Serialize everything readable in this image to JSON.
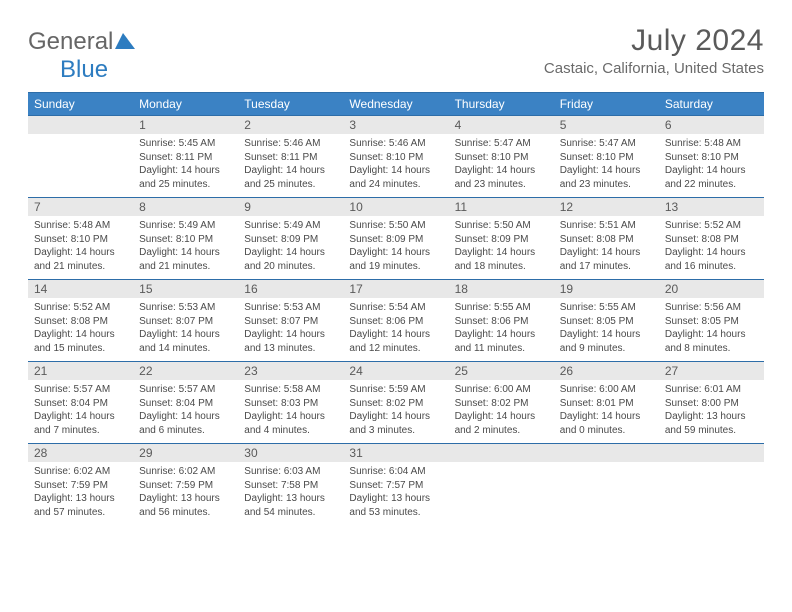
{
  "brand": {
    "part1": "General",
    "part2": "Blue"
  },
  "title": "July 2024",
  "location": "Castaic, California, United States",
  "dayNames": [
    "Sunday",
    "Monday",
    "Tuesday",
    "Wednesday",
    "Thursday",
    "Friday",
    "Saturday"
  ],
  "colors": {
    "headerBg": "#3b82c4",
    "headerBorder": "#2d6da8",
    "dayNumBg": "#e8e8e8",
    "textMuted": "#5a5a5a",
    "brandBlue": "#2d7cc0"
  },
  "weeks": [
    [
      {
        "num": "",
        "lines": []
      },
      {
        "num": "1",
        "lines": [
          "Sunrise: 5:45 AM",
          "Sunset: 8:11 PM",
          "Daylight: 14 hours",
          "and 25 minutes."
        ]
      },
      {
        "num": "2",
        "lines": [
          "Sunrise: 5:46 AM",
          "Sunset: 8:11 PM",
          "Daylight: 14 hours",
          "and 25 minutes."
        ]
      },
      {
        "num": "3",
        "lines": [
          "Sunrise: 5:46 AM",
          "Sunset: 8:10 PM",
          "Daylight: 14 hours",
          "and 24 minutes."
        ]
      },
      {
        "num": "4",
        "lines": [
          "Sunrise: 5:47 AM",
          "Sunset: 8:10 PM",
          "Daylight: 14 hours",
          "and 23 minutes."
        ]
      },
      {
        "num": "5",
        "lines": [
          "Sunrise: 5:47 AM",
          "Sunset: 8:10 PM",
          "Daylight: 14 hours",
          "and 23 minutes."
        ]
      },
      {
        "num": "6",
        "lines": [
          "Sunrise: 5:48 AM",
          "Sunset: 8:10 PM",
          "Daylight: 14 hours",
          "and 22 minutes."
        ]
      }
    ],
    [
      {
        "num": "7",
        "lines": [
          "Sunrise: 5:48 AM",
          "Sunset: 8:10 PM",
          "Daylight: 14 hours",
          "and 21 minutes."
        ]
      },
      {
        "num": "8",
        "lines": [
          "Sunrise: 5:49 AM",
          "Sunset: 8:10 PM",
          "Daylight: 14 hours",
          "and 21 minutes."
        ]
      },
      {
        "num": "9",
        "lines": [
          "Sunrise: 5:49 AM",
          "Sunset: 8:09 PM",
          "Daylight: 14 hours",
          "and 20 minutes."
        ]
      },
      {
        "num": "10",
        "lines": [
          "Sunrise: 5:50 AM",
          "Sunset: 8:09 PM",
          "Daylight: 14 hours",
          "and 19 minutes."
        ]
      },
      {
        "num": "11",
        "lines": [
          "Sunrise: 5:50 AM",
          "Sunset: 8:09 PM",
          "Daylight: 14 hours",
          "and 18 minutes."
        ]
      },
      {
        "num": "12",
        "lines": [
          "Sunrise: 5:51 AM",
          "Sunset: 8:08 PM",
          "Daylight: 14 hours",
          "and 17 minutes."
        ]
      },
      {
        "num": "13",
        "lines": [
          "Sunrise: 5:52 AM",
          "Sunset: 8:08 PM",
          "Daylight: 14 hours",
          "and 16 minutes."
        ]
      }
    ],
    [
      {
        "num": "14",
        "lines": [
          "Sunrise: 5:52 AM",
          "Sunset: 8:08 PM",
          "Daylight: 14 hours",
          "and 15 minutes."
        ]
      },
      {
        "num": "15",
        "lines": [
          "Sunrise: 5:53 AM",
          "Sunset: 8:07 PM",
          "Daylight: 14 hours",
          "and 14 minutes."
        ]
      },
      {
        "num": "16",
        "lines": [
          "Sunrise: 5:53 AM",
          "Sunset: 8:07 PM",
          "Daylight: 14 hours",
          "and 13 minutes."
        ]
      },
      {
        "num": "17",
        "lines": [
          "Sunrise: 5:54 AM",
          "Sunset: 8:06 PM",
          "Daylight: 14 hours",
          "and 12 minutes."
        ]
      },
      {
        "num": "18",
        "lines": [
          "Sunrise: 5:55 AM",
          "Sunset: 8:06 PM",
          "Daylight: 14 hours",
          "and 11 minutes."
        ]
      },
      {
        "num": "19",
        "lines": [
          "Sunrise: 5:55 AM",
          "Sunset: 8:05 PM",
          "Daylight: 14 hours",
          "and 9 minutes."
        ]
      },
      {
        "num": "20",
        "lines": [
          "Sunrise: 5:56 AM",
          "Sunset: 8:05 PM",
          "Daylight: 14 hours",
          "and 8 minutes."
        ]
      }
    ],
    [
      {
        "num": "21",
        "lines": [
          "Sunrise: 5:57 AM",
          "Sunset: 8:04 PM",
          "Daylight: 14 hours",
          "and 7 minutes."
        ]
      },
      {
        "num": "22",
        "lines": [
          "Sunrise: 5:57 AM",
          "Sunset: 8:04 PM",
          "Daylight: 14 hours",
          "and 6 minutes."
        ]
      },
      {
        "num": "23",
        "lines": [
          "Sunrise: 5:58 AM",
          "Sunset: 8:03 PM",
          "Daylight: 14 hours",
          "and 4 minutes."
        ]
      },
      {
        "num": "24",
        "lines": [
          "Sunrise: 5:59 AM",
          "Sunset: 8:02 PM",
          "Daylight: 14 hours",
          "and 3 minutes."
        ]
      },
      {
        "num": "25",
        "lines": [
          "Sunrise: 6:00 AM",
          "Sunset: 8:02 PM",
          "Daylight: 14 hours",
          "and 2 minutes."
        ]
      },
      {
        "num": "26",
        "lines": [
          "Sunrise: 6:00 AM",
          "Sunset: 8:01 PM",
          "Daylight: 14 hours",
          "and 0 minutes."
        ]
      },
      {
        "num": "27",
        "lines": [
          "Sunrise: 6:01 AM",
          "Sunset: 8:00 PM",
          "Daylight: 13 hours",
          "and 59 minutes."
        ]
      }
    ],
    [
      {
        "num": "28",
        "lines": [
          "Sunrise: 6:02 AM",
          "Sunset: 7:59 PM",
          "Daylight: 13 hours",
          "and 57 minutes."
        ]
      },
      {
        "num": "29",
        "lines": [
          "Sunrise: 6:02 AM",
          "Sunset: 7:59 PM",
          "Daylight: 13 hours",
          "and 56 minutes."
        ]
      },
      {
        "num": "30",
        "lines": [
          "Sunrise: 6:03 AM",
          "Sunset: 7:58 PM",
          "Daylight: 13 hours",
          "and 54 minutes."
        ]
      },
      {
        "num": "31",
        "lines": [
          "Sunrise: 6:04 AM",
          "Sunset: 7:57 PM",
          "Daylight: 13 hours",
          "and 53 minutes."
        ]
      },
      {
        "num": "",
        "lines": []
      },
      {
        "num": "",
        "lines": []
      },
      {
        "num": "",
        "lines": []
      }
    ]
  ]
}
